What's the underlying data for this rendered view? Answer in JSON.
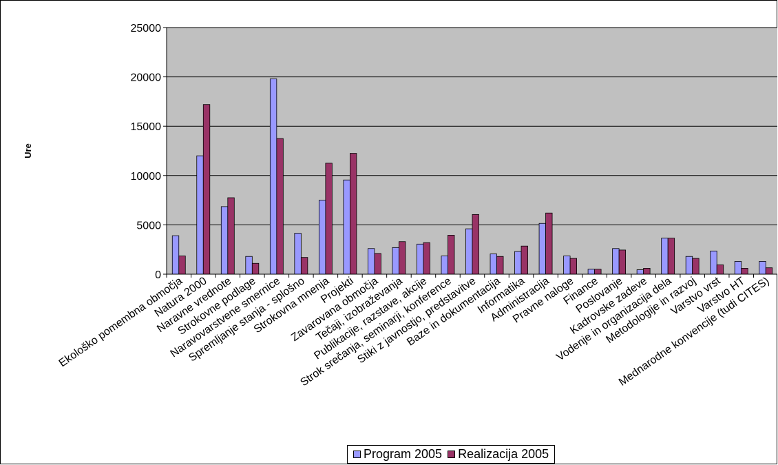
{
  "chart_data": {
    "type": "bar",
    "ylabel": "Ure",
    "xlabel": "",
    "ylim": [
      0,
      25000
    ],
    "yticks": [
      0,
      5000,
      10000,
      15000,
      20000,
      25000
    ],
    "grid": true,
    "legend_position": "bottom",
    "categories": [
      "Ekološko pomembna območja",
      "Natura 2000",
      "Naravne vrednote",
      "Strokovne podlage",
      "Naravovarstvene smernice",
      "Spremljanje stanja - splošno",
      "Strokovna mnenja",
      "Projekti",
      "Zavarovana območja",
      "Tečaji, izobraževanja",
      "Publikacije, razstave, akcije",
      "Strok srečanja, seminarji, konference",
      "Stiki z javnostjo, predstavitve",
      "Baze in dokumentacija",
      "Informatika",
      "Administracija",
      "Pravne naloge",
      "Finance",
      "Poslovanje",
      "Kadrovske zadeve",
      "Vodenje in organizacija dela",
      "Metodologije in razvoj",
      "Varstvo vrst",
      "Varstvo HT",
      "Mednarodne konvencije (tudi CITES)"
    ],
    "series": [
      {
        "name": "Program 2005",
        "color": "#9999ff",
        "values": [
          3900,
          12000,
          6850,
          1800,
          19800,
          4150,
          7500,
          9550,
          2600,
          2700,
          3050,
          1850,
          4600,
          2050,
          2300,
          5150,
          1850,
          500,
          2600,
          450,
          3650,
          1800,
          2350,
          1300,
          1300
        ]
      },
      {
        "name": "Realizacija 2005",
        "color": "#993366",
        "values": [
          1850,
          17200,
          7750,
          1100,
          13750,
          1700,
          11250,
          12250,
          2100,
          3300,
          3200,
          3950,
          6050,
          1800,
          2850,
          6200,
          1600,
          500,
          2450,
          600,
          3650,
          1600,
          950,
          600,
          650
        ]
      }
    ]
  }
}
